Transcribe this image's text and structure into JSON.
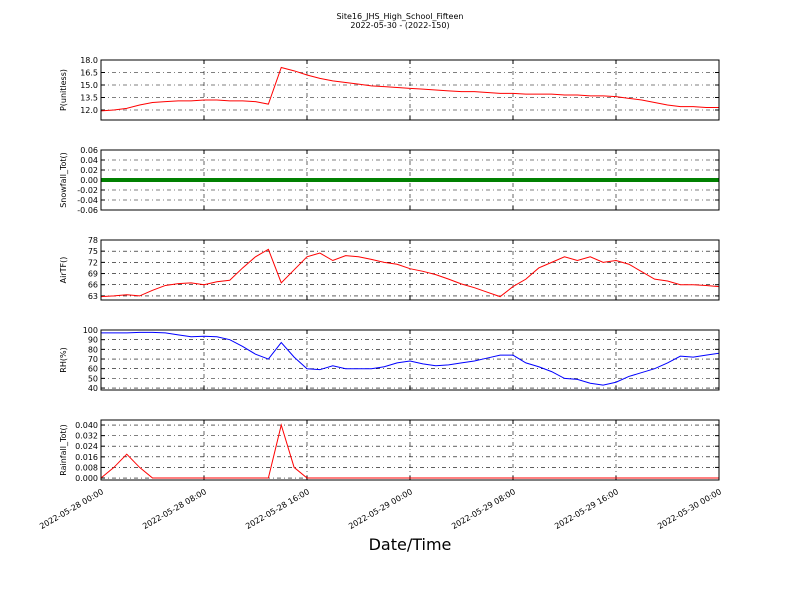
{
  "chart_data": {
    "type": "line",
    "title": "Site16_JHS_High_School_Fifteen",
    "subtitle": "2022-05-30 - (2022-150)",
    "xlabel": "Date/Time",
    "x": [
      "2022-05-28 00:00",
      "2022-05-28 01:00",
      "2022-05-28 02:00",
      "2022-05-28 03:00",
      "2022-05-28 04:00",
      "2022-05-28 05:00",
      "2022-05-28 06:00",
      "2022-05-28 07:00",
      "2022-05-28 08:00",
      "2022-05-28 09:00",
      "2022-05-28 10:00",
      "2022-05-28 11:00",
      "2022-05-28 12:00",
      "2022-05-28 13:00",
      "2022-05-28 14:00",
      "2022-05-28 15:00",
      "2022-05-28 16:00",
      "2022-05-28 17:00",
      "2022-05-28 18:00",
      "2022-05-28 19:00",
      "2022-05-28 20:00",
      "2022-05-28 21:00",
      "2022-05-28 22:00",
      "2022-05-28 23:00",
      "2022-05-29 00:00",
      "2022-05-29 01:00",
      "2022-05-29 02:00",
      "2022-05-29 03:00",
      "2022-05-29 04:00",
      "2022-05-29 05:00",
      "2022-05-29 06:00",
      "2022-05-29 07:00",
      "2022-05-29 08:00",
      "2022-05-29 09:00",
      "2022-05-29 10:00",
      "2022-05-29 11:00",
      "2022-05-29 12:00",
      "2022-05-29 13:00",
      "2022-05-29 14:00",
      "2022-05-29 15:00",
      "2022-05-29 16:00",
      "2022-05-29 17:00",
      "2022-05-29 18:00",
      "2022-05-29 19:00",
      "2022-05-29 20:00",
      "2022-05-29 21:00",
      "2022-05-29 22:00",
      "2022-05-29 23:00",
      "2022-05-30 00:00"
    ],
    "xlim": [
      "2022-05-28 00:00",
      "2022-05-30 00:00"
    ],
    "xticks": [
      "2022-05-28 00:00",
      "2022-05-28 08:00",
      "2022-05-28 16:00",
      "2022-05-29 00:00",
      "2022-05-29 08:00",
      "2022-05-29 16:00",
      "2022-05-30 00:00"
    ],
    "grid": true,
    "panels": [
      {
        "ylabel": "P(unitless)",
        "ylim": [
          10.8,
          18.0
        ],
        "yticks": [
          {
            "value": 18,
            "label": "18.0"
          },
          16.5,
          {
            "value": 15,
            "label": "15.0"
          },
          13.5,
          {
            "value": 12,
            "label": "12.0"
          }
        ],
        "series": [
          {
            "color": "#ff0000",
            "values": [
              11.9,
              12.0,
              12.2,
              12.6,
              12.9,
              13.0,
              13.1,
              13.1,
              13.2,
              13.2,
              13.1,
              13.1,
              13.0,
              12.7,
              17.1,
              16.7,
              16.2,
              15.8,
              15.5,
              15.3,
              15.1,
              14.9,
              14.8,
              14.7,
              14.6,
              14.5,
              14.4,
              14.3,
              14.2,
              14.2,
              14.1,
              14.0,
              14.0,
              13.9,
              13.9,
              13.9,
              13.8,
              13.8,
              13.7,
              13.7,
              13.6,
              13.4,
              13.2,
              12.9,
              12.6,
              12.4,
              12.4,
              12.3,
              12.3
            ]
          }
        ]
      },
      {
        "ylabel": "Snowfall_Tot()",
        "ylim": [
          -0.06,
          0.06
        ],
        "yticks": [
          0.06,
          0.04,
          0.02,
          {
            "value": 0,
            "label": "0.00"
          },
          -0.02,
          -0.04,
          -0.06
        ],
        "series": [
          {
            "color": "#008000",
            "values": [
              0,
              0,
              0,
              0,
              0,
              0,
              0,
              0,
              0,
              0,
              0,
              0,
              0,
              0,
              0,
              0,
              0,
              0,
              0,
              0,
              0,
              0,
              0,
              0,
              0,
              0,
              0,
              0,
              0,
              0,
              0,
              0,
              0,
              0,
              0,
              0,
              0,
              0,
              0,
              0,
              0,
              0,
              0,
              0,
              0,
              0,
              0,
              0,
              0
            ]
          }
        ]
      },
      {
        "ylabel": "AirTF()",
        "ylim": [
          61.9,
          78
        ],
        "yticks": [
          78,
          75,
          72,
          69,
          66,
          63
        ],
        "series": [
          {
            "color": "#ff0000",
            "values": [
              62.8,
              63.0,
              63.3,
              63.0,
              64.5,
              65.8,
              66.3,
              66.5,
              66.0,
              66.8,
              67.2,
              70.5,
              73.5,
              75.5,
              66.5,
              70.0,
              73.5,
              74.5,
              72.5,
              73.8,
              73.5,
              72.8,
              72.0,
              71.5,
              70.3,
              69.6,
              68.7,
              67.5,
              66.2,
              65.2,
              64.0,
              62.8,
              65.5,
              67.5,
              70.5,
              72.0,
              73.5,
              72.5,
              73.5,
              72.0,
              72.5,
              71.5,
              69.5,
              67.5,
              67.0,
              66.0,
              66.0,
              65.8,
              65.5
            ]
          }
        ]
      },
      {
        "ylabel": "RH(%)",
        "ylim": [
          38,
          100
        ],
        "yticks": [
          100,
          90,
          80,
          70,
          60,
          50,
          40
        ],
        "series": [
          {
            "color": "#0000ff",
            "values": [
              97,
              97,
              97,
              97.5,
              97.5,
              97,
              95,
              93,
              93.5,
              93,
              90,
              83,
              75,
              70,
              87,
              72,
              60,
              59,
              63,
              60,
              60,
              60,
              62,
              66,
              68,
              65,
              63,
              64,
              66,
              68,
              71,
              74,
              74,
              66,
              62,
              57,
              50,
              49,
              45,
              43,
              46,
              52,
              56,
              60,
              66,
              73,
              72,
              74,
              76
            ]
          }
        ]
      },
      {
        "ylabel": "Rainfall_Tot()",
        "ylim": [
          -0.0015,
          0.0438
        ],
        "yticks": [
          {
            "value": 0.04,
            "label": "0.040"
          },
          {
            "value": 0.032,
            "label": "0.032"
          },
          {
            "value": 0.024,
            "label": "0.024"
          },
          {
            "value": 0.016,
            "label": "0.016"
          },
          {
            "value": 0.008,
            "label": "0.008"
          },
          {
            "value": 0,
            "label": "0.000"
          }
        ],
        "series": [
          {
            "color": "#ff0000",
            "values": [
              0,
              0.008,
              0.018,
              0.008,
              0,
              0,
              0,
              0,
              0,
              0,
              0,
              0,
              0,
              0,
              0.04,
              0.008,
              0,
              0,
              0,
              0,
              0,
              0,
              0,
              0,
              0,
              0,
              0,
              0,
              0,
              0,
              0,
              0,
              0,
              0,
              0,
              0,
              0,
              0,
              0,
              0,
              0,
              0,
              0,
              0,
              0,
              0,
              0,
              0,
              0
            ]
          }
        ]
      }
    ]
  }
}
